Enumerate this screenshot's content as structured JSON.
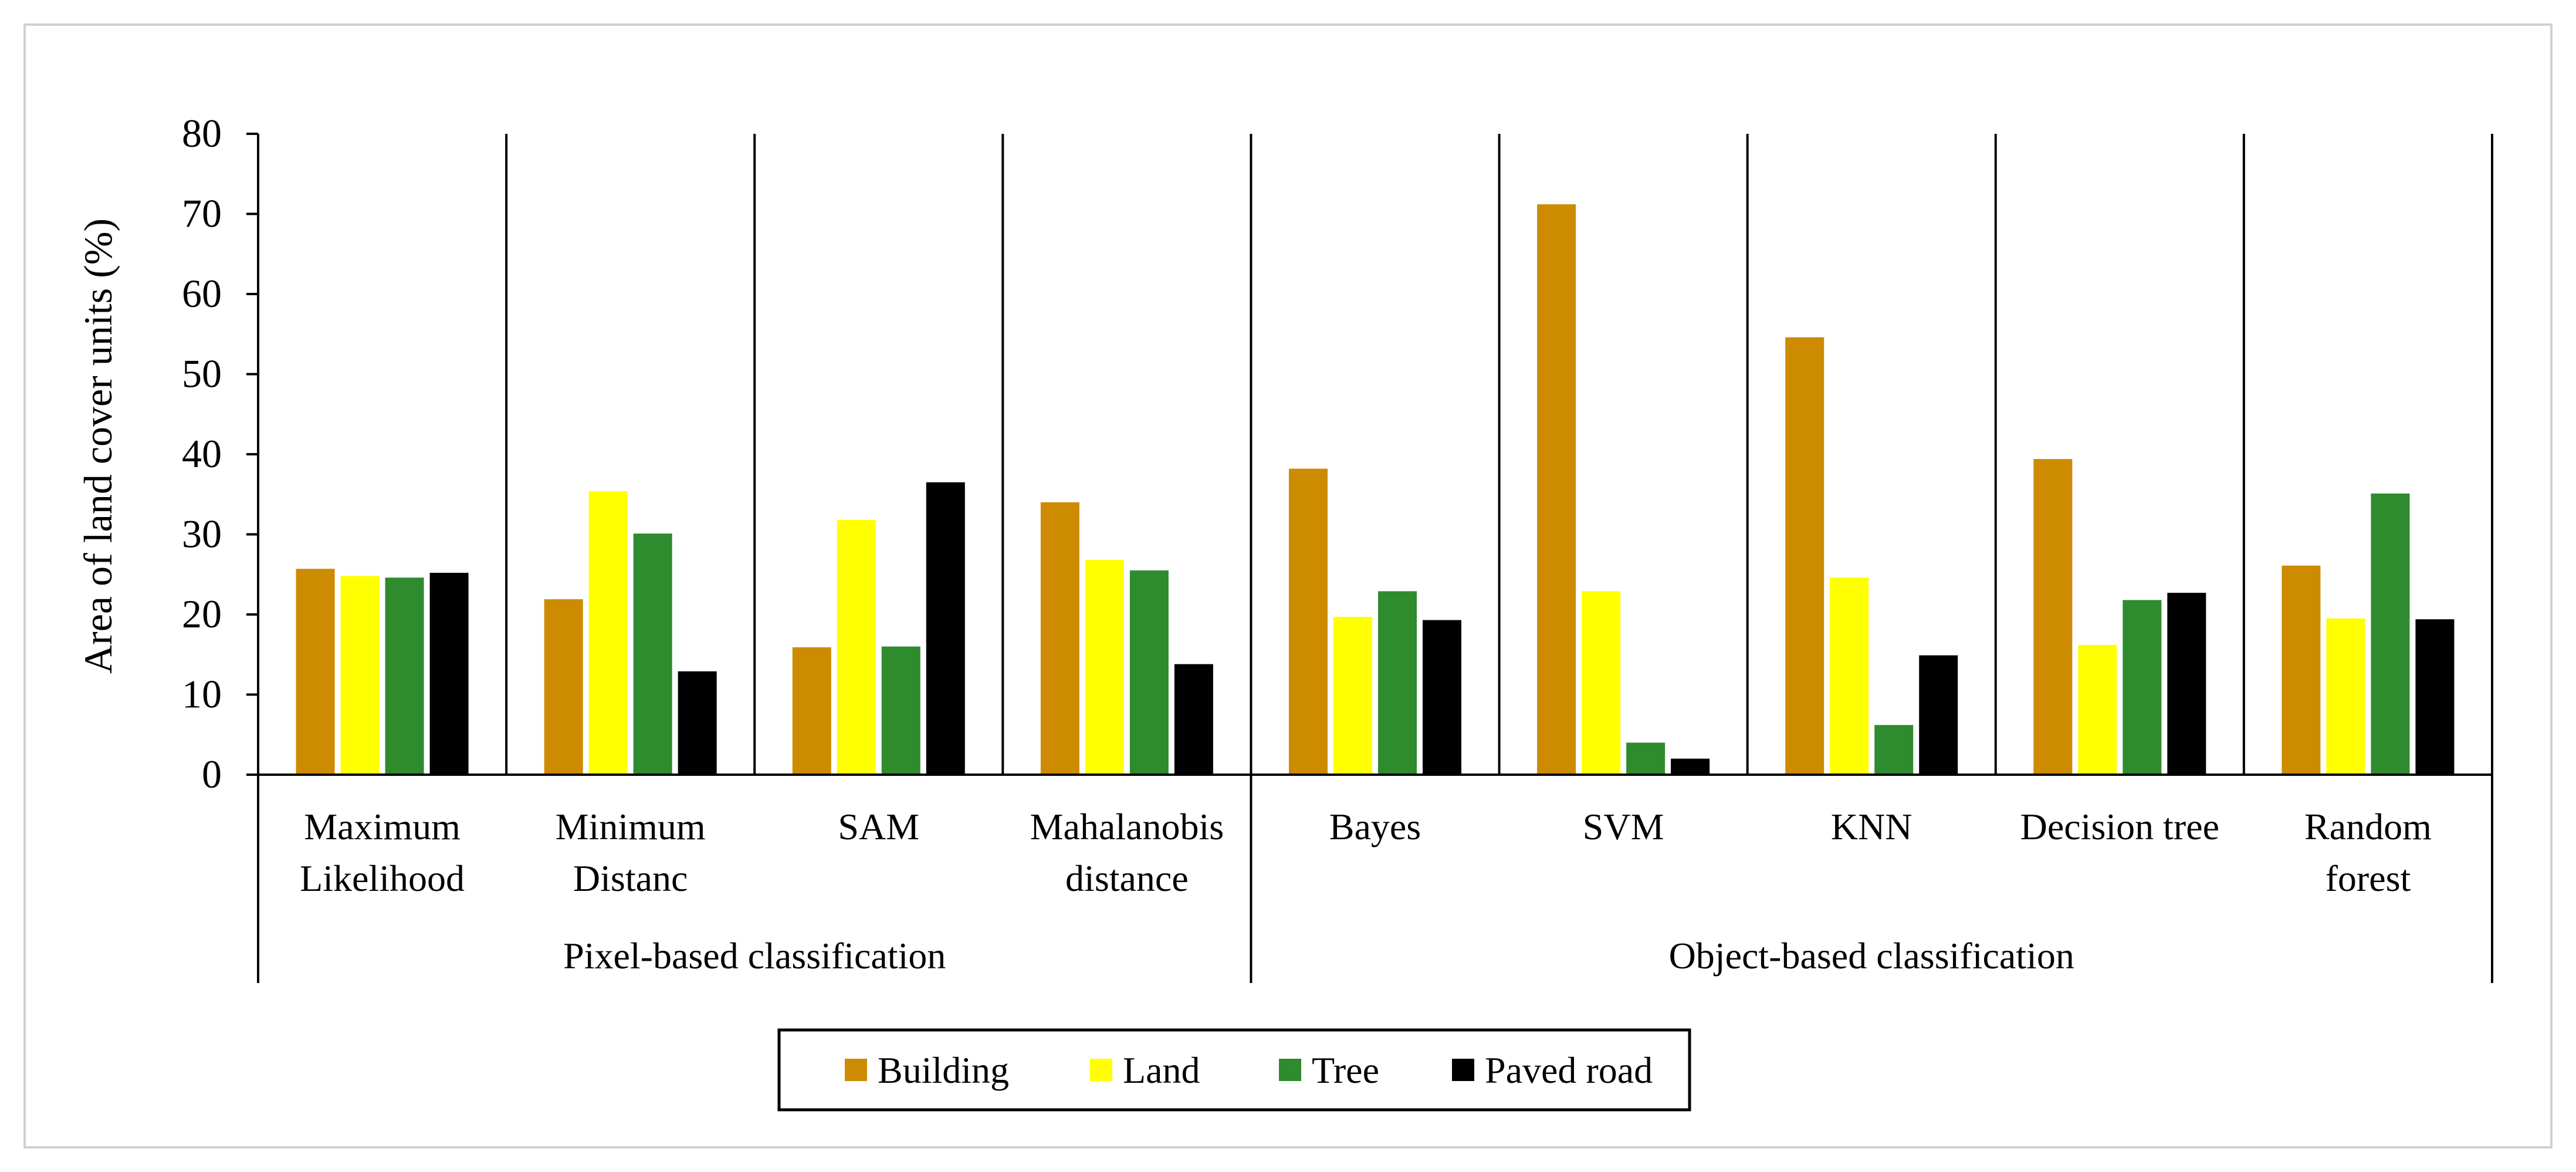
{
  "chart_data": {
    "type": "bar",
    "title": "",
    "ylabel": "Area of land cover units (%)",
    "xlabel": "",
    "ylim": [
      0,
      80
    ],
    "yticks": [
      0,
      10,
      20,
      30,
      40,
      50,
      60,
      70,
      80
    ],
    "categories": [
      [
        "Maximum",
        "Likelihood"
      ],
      [
        "Minimum",
        "Distanc"
      ],
      [
        "SAM"
      ],
      [
        "Mahalanobis",
        "distance"
      ],
      [
        "Bayes"
      ],
      [
        "SVM"
      ],
      [
        "KNN"
      ],
      [
        "Decision tree"
      ],
      [
        "Random",
        "forest"
      ]
    ],
    "groups": [
      {
        "label": "Pixel-based classification",
        "count": 4
      },
      {
        "label": "Object-based classification",
        "count": 5
      }
    ],
    "series": [
      {
        "name": "Building",
        "color": "#cc8b00",
        "values": [
          25.7,
          21.9,
          15.9,
          34.0,
          38.2,
          71.2,
          54.6,
          39.4,
          26.1
        ]
      },
      {
        "name": "Land",
        "color": "#ffff00",
        "values": [
          24.8,
          35.4,
          31.8,
          26.8,
          19.7,
          22.9,
          24.6,
          16.2,
          19.5
        ]
      },
      {
        "name": "Tree",
        "color": "#2e8b2e",
        "values": [
          24.6,
          30.1,
          16.0,
          25.5,
          22.9,
          4.0,
          6.2,
          21.8,
          35.1
        ]
      },
      {
        "name": "Paved road",
        "color": "#000000",
        "values": [
          25.2,
          12.9,
          36.5,
          13.8,
          19.3,
          2.0,
          14.9,
          22.7,
          19.4
        ]
      }
    ],
    "legend": "bottom-center"
  }
}
